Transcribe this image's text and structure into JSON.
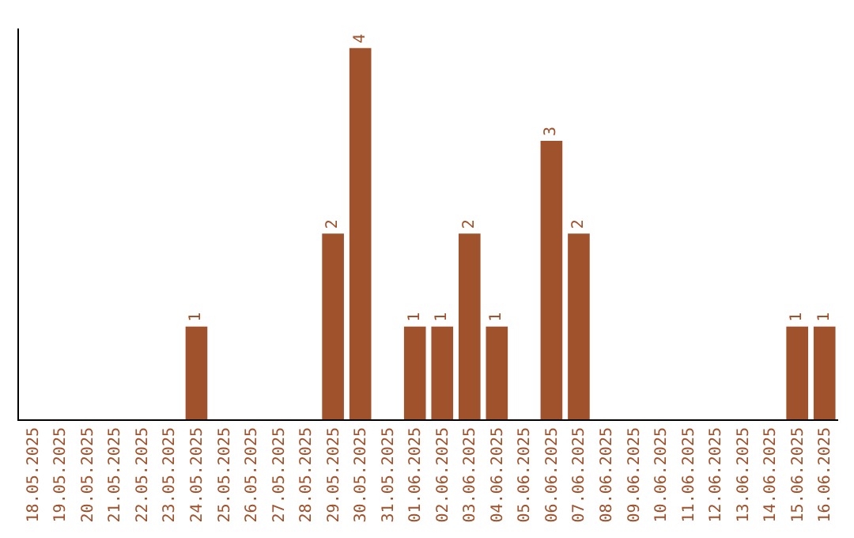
{
  "chart_data": {
    "type": "bar",
    "categories": [
      "18.05.2025",
      "19.05.2025",
      "20.05.2025",
      "21.05.2025",
      "22.05.2025",
      "23.05.2025",
      "24.05.2025",
      "25.05.2025",
      "26.05.2025",
      "27.05.2025",
      "28.05.2025",
      "29.05.2025",
      "30.05.2025",
      "31.05.2025",
      "01.06.2025",
      "02.06.2025",
      "03.06.2025",
      "04.06.2025",
      "05.06.2025",
      "06.06.2025",
      "07.06.2025",
      "08.06.2025",
      "09.06.2025",
      "10.06.2025",
      "11.06.2025",
      "12.06.2025",
      "13.06.2025",
      "14.06.2025",
      "15.06.2025",
      "16.06.2025"
    ],
    "values": [
      null,
      null,
      null,
      null,
      null,
      null,
      1,
      null,
      null,
      null,
      null,
      2,
      4,
      null,
      1,
      1,
      2,
      1,
      null,
      3,
      2,
      null,
      null,
      null,
      null,
      null,
      null,
      null,
      1,
      1
    ],
    "data_labels": true,
    "color": "#a0522d",
    "tick_labels": "x"
  }
}
